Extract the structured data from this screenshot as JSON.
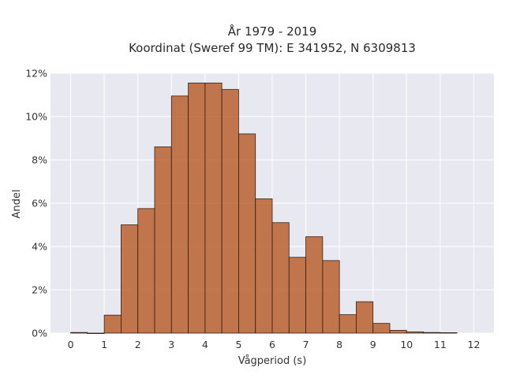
{
  "chart_data": {
    "type": "bar",
    "title_line1": "År 1979 - 2019",
    "title_line2": "Koordinat (Sweref 99 TM): E 341952, N 6309813",
    "xlabel": "Vågperiod (s)",
    "ylabel": "Andel",
    "xlim": [
      -0.6,
      12.6
    ],
    "ylim": [
      0,
      12
    ],
    "xticks": [
      0,
      1,
      2,
      3,
      4,
      5,
      6,
      7,
      8,
      9,
      10,
      11,
      12
    ],
    "yticks": [
      0,
      2,
      4,
      6,
      8,
      10,
      12
    ],
    "ytick_labels": [
      "0%",
      "2%",
      "4%",
      "6%",
      "8%",
      "10%",
      "12%"
    ],
    "bin_width": 0.5,
    "bins": [
      {
        "x0": 0.0,
        "value": 0.03
      },
      {
        "x0": 0.5,
        "value": 0.0
      },
      {
        "x0": 1.0,
        "value": 0.83
      },
      {
        "x0": 1.5,
        "value": 5.0
      },
      {
        "x0": 2.0,
        "value": 5.75
      },
      {
        "x0": 2.5,
        "value": 8.6
      },
      {
        "x0": 3.0,
        "value": 10.95
      },
      {
        "x0": 3.5,
        "value": 11.55
      },
      {
        "x0": 4.0,
        "value": 11.55
      },
      {
        "x0": 4.5,
        "value": 11.25
      },
      {
        "x0": 5.0,
        "value": 9.2
      },
      {
        "x0": 5.5,
        "value": 6.2
      },
      {
        "x0": 6.0,
        "value": 5.1
      },
      {
        "x0": 6.5,
        "value": 3.5
      },
      {
        "x0": 7.0,
        "value": 4.45
      },
      {
        "x0": 7.5,
        "value": 3.35
      },
      {
        "x0": 8.0,
        "value": 0.85
      },
      {
        "x0": 8.5,
        "value": 1.45
      },
      {
        "x0": 9.0,
        "value": 0.45
      },
      {
        "x0": 9.5,
        "value": 0.13
      },
      {
        "x0": 10.0,
        "value": 0.06
      },
      {
        "x0": 10.5,
        "value": 0.03
      },
      {
        "x0": 11.0,
        "value": 0.02
      }
    ],
    "bar_color": "#b5541e",
    "bar_edge_color": "#3a2010",
    "plot_bg": "#e8e8f0",
    "grid": true
  }
}
